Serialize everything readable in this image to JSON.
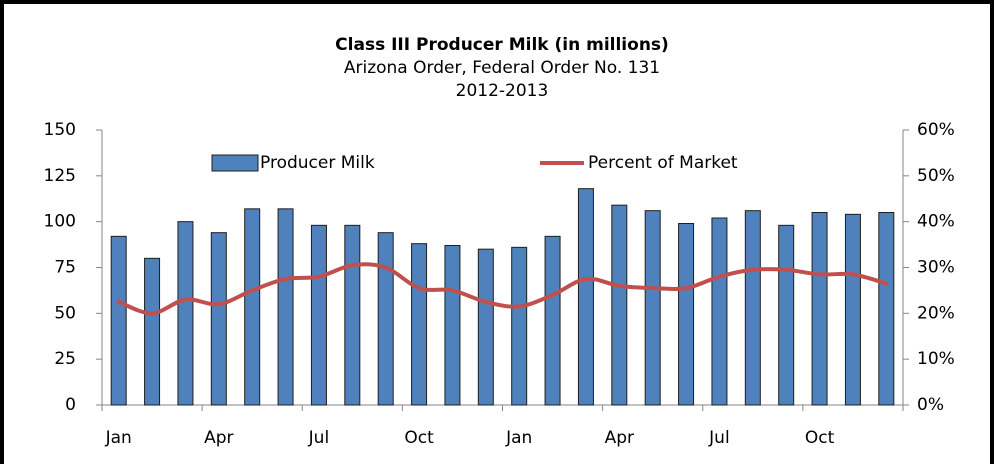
{
  "chart_data": {
    "type": "bar_line",
    "title": "Class III Producer Milk (in millions)",
    "subtitle": "Arizona Order, Federal Order No. 131",
    "subtitle2": "2012-2013",
    "categories": [
      "Jan",
      null,
      null,
      "Apr",
      null,
      null,
      "Jul",
      null,
      null,
      "Oct",
      null,
      null,
      "Jan",
      null,
      null,
      "Apr",
      null,
      null,
      "Jul",
      null,
      null,
      "Oct",
      null,
      null
    ],
    "series": [
      {
        "name": "Producer Milk",
        "type": "bar",
        "color": "#4f81bd",
        "values": [
          92,
          80,
          100,
          94,
          107,
          107,
          98,
          98,
          94,
          88,
          87,
          85,
          86,
          92,
          118,
          109,
          106,
          99,
          102,
          106,
          98,
          105,
          104,
          105
        ]
      },
      {
        "name": "Percent of Market",
        "type": "line",
        "axis": "y2",
        "color": "#c0504d",
        "values": [
          22.5,
          20,
          23,
          22,
          25,
          27.5,
          28,
          30.5,
          30,
          25.5,
          25,
          22.5,
          21.5,
          24,
          27.5,
          26,
          25.5,
          25.5,
          28,
          29.5,
          29.5,
          28.5,
          28.5,
          26.5
        ]
      }
    ],
    "ylim": [
      0,
      150
    ],
    "yticks": [
      0,
      25,
      50,
      75,
      100,
      125,
      150
    ],
    "y2lim": [
      0,
      60
    ],
    "y2ticks": [
      {
        "value": 0,
        "label": "0%"
      },
      {
        "value": 10,
        "label": "10%"
      },
      {
        "value": 20,
        "label": "20%"
      },
      {
        "value": 30,
        "label": "30%"
      },
      {
        "value": 40,
        "label": "40%"
      },
      {
        "value": 50,
        "label": "50%"
      },
      {
        "value": 60,
        "label": "60%"
      }
    ],
    "grid": false,
    "legend": "top"
  }
}
